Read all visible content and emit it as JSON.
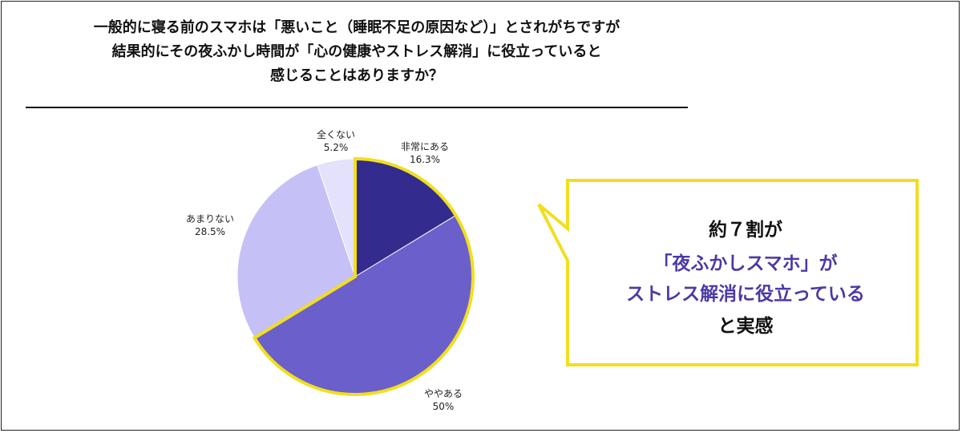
{
  "question": {
    "line1": "一般的に寝る前のスマホは「悪いこと（睡眠不足の原因など）」とされがちですが",
    "line2": "結果的にその夜ふかし時間が「心の健康やストレス解消」に役立っていると",
    "line3": "感じることはありますか？"
  },
  "callout": {
    "line1": "約７割が",
    "line2": "「夜ふかしスマホ」が",
    "line3": "ストレス解消に役立っている",
    "line4": "と実感"
  },
  "colors": {
    "highlight": "#f2de1e",
    "accent_text": "#4a3aa6"
  },
  "chart_data": {
    "type": "pie",
    "start": "12 o'clock, clockwise",
    "slices": [
      {
        "label": "非常にある",
        "value": 16.3,
        "value_label": "16.3%",
        "color": "#332c8e",
        "highlight": true
      },
      {
        "label": "ややある",
        "value": 50,
        "value_label": "50%",
        "color": "#6b5fcb",
        "highlight": true
      },
      {
        "label": "あまりない",
        "value": 28.5,
        "value_label": "28.5%",
        "color": "#c5c0f5",
        "highlight": false
      },
      {
        "label": "全くない",
        "value": 5.2,
        "value_label": "5.2%",
        "color": "#e3e1fb",
        "highlight": false
      }
    ]
  }
}
